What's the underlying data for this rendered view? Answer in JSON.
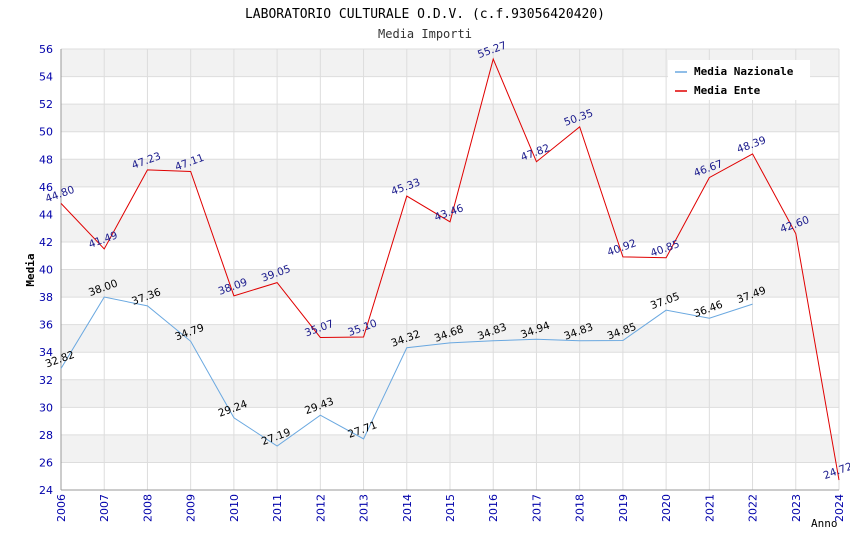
{
  "chart_data": {
    "type": "line",
    "title": "LABORATORIO CULTURALE O.D.V. (c.f.93056420420)",
    "subtitle": "Media Importi",
    "xlabel": "Anno",
    "ylabel": "Media",
    "ylim": [
      24,
      56
    ],
    "yticks": [
      24,
      26,
      28,
      30,
      32,
      34,
      36,
      38,
      40,
      42,
      44,
      46,
      48,
      50,
      52,
      54,
      56
    ],
    "x": [
      "2006",
      "2007",
      "2008",
      "2009",
      "2010",
      "2011",
      "2012",
      "2013",
      "2014",
      "2015",
      "2016",
      "2017",
      "2018",
      "2019",
      "2020",
      "2021",
      "2022",
      "2023",
      "2024"
    ],
    "grid": true,
    "legend_position": "top-right",
    "series": [
      {
        "name": "Media Nazionale",
        "color": "#6aa8e0",
        "values": [
          32.82,
          38.0,
          37.36,
          34.79,
          29.24,
          27.19,
          29.43,
          27.71,
          34.32,
          34.68,
          34.83,
          34.94,
          34.83,
          34.85,
          37.05,
          36.46,
          37.49,
          null,
          null
        ],
        "labels": [
          "32.82",
          "38.00",
          "37.36",
          "34.79",
          "29.24",
          "27.19",
          "29.43",
          "27.71",
          "34.32",
          "34.68",
          "34.83",
          "34.94",
          "34.83",
          "34.85",
          "37.05",
          "36.46",
          "37.49",
          null,
          null
        ]
      },
      {
        "name": "Media Ente",
        "color": "#e00000",
        "values": [
          44.8,
          41.49,
          47.23,
          47.11,
          38.09,
          39.05,
          35.07,
          35.1,
          45.33,
          43.46,
          55.27,
          47.82,
          50.35,
          40.92,
          40.85,
          46.67,
          48.39,
          42.6,
          24.72
        ],
        "labels": [
          "44.80",
          "41.49",
          "47.23",
          "47.11",
          "38.09",
          "39.05",
          "35.07",
          "35.10",
          "45.33",
          "43.46",
          "55.27",
          "47.82",
          "50.35",
          "40.92",
          "40.85",
          "46.67",
          "48.39",
          "42.60",
          "24.72"
        ]
      }
    ]
  }
}
